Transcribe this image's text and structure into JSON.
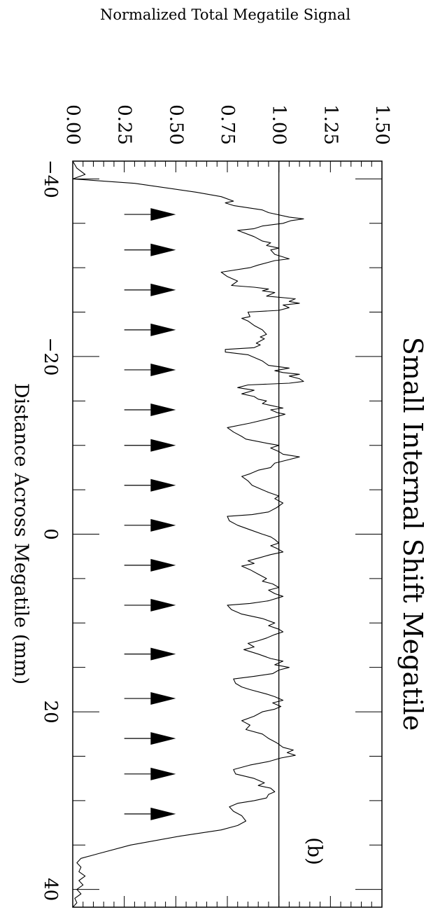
{
  "chart_data": {
    "type": "line",
    "title": "Small Internal Shift Megatile",
    "xlabel": "Distance Across Megatile (mm)",
    "ylabel": "Normalized Total Megatile Signal",
    "panel_label": "(b)",
    "xlim": [
      -42,
      42
    ],
    "ylim": [
      0,
      1.5
    ],
    "x_ticks": [
      -40,
      -20,
      0,
      20,
      40
    ],
    "x_tick_labels": [
      "−40",
      "−20",
      "0",
      "20",
      "40"
    ],
    "y_ticks": [
      0,
      0.25,
      0.5,
      0.75,
      1.0,
      1.25,
      1.5
    ],
    "y_tick_labels": [
      "0.00",
      "0.25",
      "0.50",
      "0.75",
      "1.00",
      "1.25",
      "1.50"
    ],
    "reference_line_y": 1.0,
    "arrow_markers": {
      "x": [
        -36,
        -32,
        -27.5,
        -23,
        -18.5,
        -14,
        -10,
        -5.5,
        -1,
        3.5,
        8,
        13.5,
        18.5,
        23,
        27,
        31.5
      ],
      "y_start": 0.25,
      "y_tip": 0.5
    },
    "series": [
      {
        "values": [
          [
            -42,
            0.0
          ],
          [
            -41.2,
            0.02
          ],
          [
            -40.5,
            0.06
          ],
          [
            -40,
            0.0
          ],
          [
            -39.5,
            0.3
          ],
          [
            -38.5,
            0.6
          ],
          [
            -38,
            0.72
          ],
          [
            -37.5,
            0.78
          ],
          [
            -37.3,
            0.74
          ],
          [
            -37,
            0.78
          ],
          [
            -36.5,
            0.92
          ],
          [
            -36.2,
            0.95
          ],
          [
            -35.7,
            1.05
          ],
          [
            -35.5,
            1.12
          ],
          [
            -35.3,
            1.06
          ],
          [
            -35,
            1.02
          ],
          [
            -34.7,
            0.92
          ],
          [
            -34.4,
            0.88
          ],
          [
            -34.2,
            0.8
          ],
          [
            -33.5,
            0.88
          ],
          [
            -33,
            0.92
          ],
          [
            -32.8,
            0.96
          ],
          [
            -32.5,
            0.94
          ],
          [
            -32.2,
            1.0
          ],
          [
            -32,
            0.96
          ],
          [
            -31.5,
            0.98
          ],
          [
            -31,
            1.05
          ],
          [
            -30.8,
            0.98
          ],
          [
            -30.3,
            0.9
          ],
          [
            -30,
            0.86
          ],
          [
            -29.5,
            0.72
          ],
          [
            -29,
            0.75
          ],
          [
            -28.5,
            0.8
          ],
          [
            -28,
            0.77
          ],
          [
            -27.8,
            0.88
          ],
          [
            -27.6,
            0.95
          ],
          [
            -27.4,
            0.92
          ],
          [
            -27.2,
            0.98
          ],
          [
            -26.8,
            0.94
          ],
          [
            -26.5,
            1.08
          ],
          [
            -26.2,
            1.05
          ],
          [
            -26,
            1.1
          ],
          [
            -25.8,
            1.02
          ],
          [
            -25.5,
            1.05
          ],
          [
            -25.2,
            1.0
          ],
          [
            -25,
            0.85
          ],
          [
            -24.5,
            0.86
          ],
          [
            -24.3,
            0.82
          ],
          [
            -24,
            0.85
          ],
          [
            -23.5,
            0.88
          ],
          [
            -23,
            0.92
          ],
          [
            -22.5,
            0.94
          ],
          [
            -22.2,
            0.91
          ],
          [
            -22,
            0.93
          ],
          [
            -21.5,
            0.89
          ],
          [
            -21.3,
            0.91
          ],
          [
            -21,
            0.88
          ],
          [
            -20.8,
            0.74
          ],
          [
            -20.5,
            0.74
          ],
          [
            -20.2,
            0.85
          ],
          [
            -19.5,
            0.92
          ],
          [
            -19,
            0.95
          ],
          [
            -18.7,
            1.05
          ],
          [
            -18.4,
            0.98
          ],
          [
            -18.2,
            1.02
          ],
          [
            -18,
            1.1
          ],
          [
            -17.8,
            1.05
          ],
          [
            -17.5,
            1.1
          ],
          [
            -17.2,
            1.12
          ],
          [
            -17,
            1.05
          ],
          [
            -16.8,
            0.85
          ],
          [
            -16.5,
            0.8
          ],
          [
            -16.2,
            0.88
          ],
          [
            -15.8,
            0.82
          ],
          [
            -15.5,
            0.88
          ],
          [
            -15.2,
            0.9
          ],
          [
            -15,
            0.94
          ],
          [
            -14.7,
            0.92
          ],
          [
            -14.5,
            0.96
          ],
          [
            -14.2,
            1.02
          ],
          [
            -14,
            0.96
          ],
          [
            -13.7,
            0.99
          ],
          [
            -13.5,
            1.03
          ],
          [
            -13.3,
            1.0
          ],
          [
            -13,
            0.95
          ],
          [
            -12.5,
            0.86
          ],
          [
            -12,
            0.75
          ],
          [
            -11.5,
            0.78
          ],
          [
            -11,
            0.82
          ],
          [
            -10.7,
            0.84
          ],
          [
            -10.2,
            0.95
          ],
          [
            -10,
            1.0
          ],
          [
            -9.7,
            0.96
          ],
          [
            -9.3,
            1.0
          ],
          [
            -9,
            1.02
          ],
          [
            -8.7,
            1.1
          ],
          [
            -8.4,
            1.05
          ],
          [
            -8,
            0.98
          ],
          [
            -7.5,
            0.96
          ],
          [
            -7.2,
            0.9
          ],
          [
            -6.8,
            0.86
          ],
          [
            -6.5,
            0.82
          ],
          [
            -6,
            0.85
          ],
          [
            -5.5,
            0.87
          ],
          [
            -5,
            0.92
          ],
          [
            -4.7,
            0.95
          ],
          [
            -4.3,
            1.0
          ],
          [
            -4,
            0.98
          ],
          [
            -3.5,
            1.02
          ],
          [
            -3,
            0.99
          ],
          [
            -2.5,
            0.95
          ],
          [
            -2.2,
            0.87
          ],
          [
            -2,
            0.75
          ],
          [
            -1.5,
            0.76
          ],
          [
            -1,
            0.8
          ],
          [
            -0.5,
            0.86
          ],
          [
            0,
            0.92
          ],
          [
            0.3,
            0.96
          ],
          [
            0.6,
            0.98
          ],
          [
            1,
            1.0
          ],
          [
            1.3,
            0.96
          ],
          [
            1.6,
            0.99
          ],
          [
            2,
            1.02
          ],
          [
            2.3,
            0.96
          ],
          [
            2.7,
            0.9
          ],
          [
            3,
            0.85
          ],
          [
            3.3,
            0.88
          ],
          [
            3.6,
            0.82
          ],
          [
            4,
            0.86
          ],
          [
            4.5,
            0.9
          ],
          [
            5,
            0.94
          ],
          [
            5.3,
            0.92
          ],
          [
            5.6,
            0.97
          ],
          [
            6,
            1.0
          ],
          [
            6.3,
            0.95
          ],
          [
            6.7,
            0.98
          ],
          [
            7,
            1.02
          ],
          [
            7.5,
            0.95
          ],
          [
            7.8,
            0.86
          ],
          [
            8,
            0.75
          ],
          [
            8.5,
            0.77
          ],
          [
            9,
            0.82
          ],
          [
            9.5,
            0.92
          ],
          [
            10,
            0.98
          ],
          [
            10.3,
            0.95
          ],
          [
            10.7,
            1.0
          ],
          [
            11,
            1.02
          ],
          [
            11.3,
            0.98
          ],
          [
            11.7,
            0.94
          ],
          [
            12,
            0.9
          ],
          [
            12.3,
            0.85
          ],
          [
            12.7,
            0.88
          ],
          [
            13,
            0.83
          ],
          [
            13.5,
            0.9
          ],
          [
            14,
            0.96
          ],
          [
            14.3,
            1.02
          ],
          [
            14.7,
            0.98
          ],
          [
            15,
            1.05
          ],
          [
            15.3,
            1.0
          ],
          [
            15.7,
            0.97
          ],
          [
            16,
            0.88
          ],
          [
            16.3,
            0.78
          ],
          [
            16.8,
            0.79
          ],
          [
            17.2,
            0.82
          ],
          [
            17.5,
            0.86
          ],
          [
            18,
            0.94
          ],
          [
            18.3,
            0.98
          ],
          [
            18.7,
            1.02
          ],
          [
            19,
            0.97
          ],
          [
            19.4,
            1.01
          ],
          [
            19.7,
            0.98
          ],
          [
            20,
            0.92
          ],
          [
            20.5,
            0.88
          ],
          [
            21,
            0.82
          ],
          [
            21.5,
            0.86
          ],
          [
            22,
            0.84
          ],
          [
            22.5,
            0.92
          ],
          [
            23,
            0.95
          ],
          [
            23.5,
            0.99
          ],
          [
            24,
            1.02
          ],
          [
            24.3,
            1.07
          ],
          [
            24.6,
            1.04
          ],
          [
            24.9,
            1.08
          ],
          [
            25.2,
            1.01
          ],
          [
            25.6,
            0.95
          ],
          [
            26,
            0.86
          ],
          [
            26.5,
            0.78
          ],
          [
            27,
            0.79
          ],
          [
            27.5,
            0.88
          ],
          [
            28,
            0.93
          ],
          [
            28.3,
            0.9
          ],
          [
            28.6,
            0.96
          ],
          [
            29,
            0.98
          ],
          [
            29.3,
            0.95
          ],
          [
            29.7,
            0.94
          ],
          [
            30,
            0.88
          ],
          [
            30.3,
            0.8
          ],
          [
            30.7,
            0.76
          ],
          [
            31.2,
            0.78
          ],
          [
            31.7,
            0.82
          ],
          [
            32.3,
            0.84
          ],
          [
            32.8,
            0.8
          ],
          [
            33.3,
            0.72
          ],
          [
            34,
            0.52
          ],
          [
            35,
            0.28
          ],
          [
            36,
            0.12
          ],
          [
            36.5,
            0.04
          ],
          [
            37,
            0.02
          ],
          [
            37.5,
            0.04
          ],
          [
            38,
            0.03
          ],
          [
            38.5,
            0.06
          ],
          [
            39,
            0.03
          ],
          [
            39.5,
            0.05
          ],
          [
            40,
            0.02
          ],
          [
            40.5,
            0.04
          ],
          [
            41,
            0.01
          ],
          [
            41.5,
            0.02
          ],
          [
            42,
            0.0
          ]
        ]
      }
    ]
  }
}
